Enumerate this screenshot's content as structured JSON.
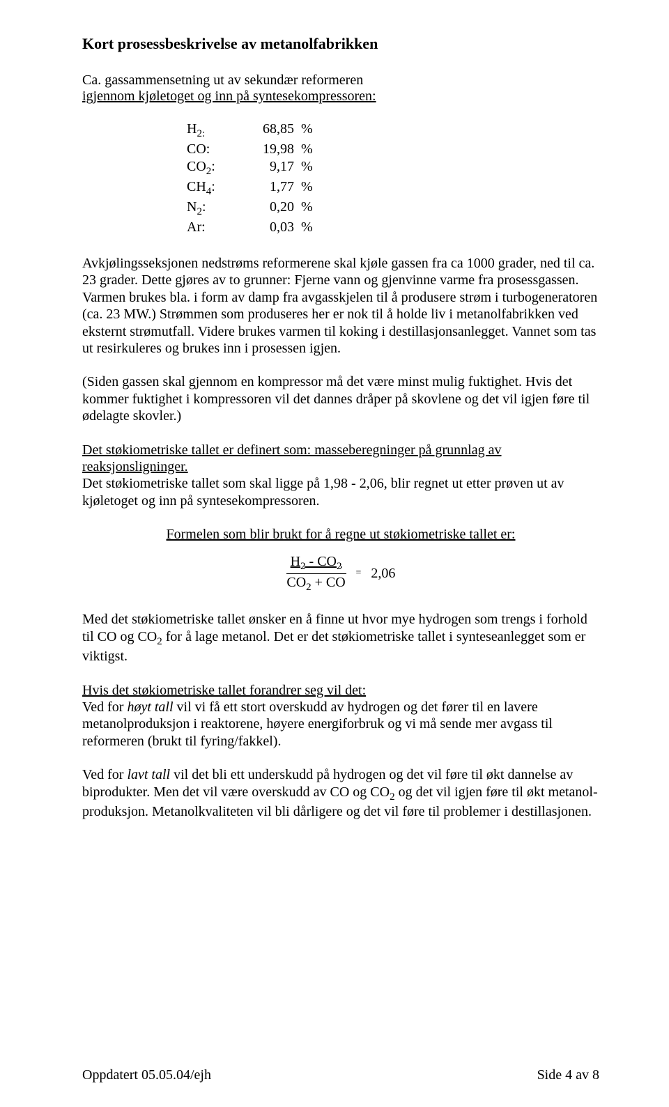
{
  "heading": "Kort prosessbeskrivelse av metanolfabrikken",
  "intro": {
    "line1": "Ca. gassammensetning ut av sekundær reformeren",
    "line2_underlined": "igjennom kjøletoget og inn på syntesekompressoren:"
  },
  "gas_table": {
    "rows": [
      {
        "label_pre": "H",
        "sub": "2:",
        "label_post": "",
        "value": "68,85",
        "pct": "%"
      },
      {
        "label_pre": "CO:",
        "sub": "",
        "label_post": "",
        "value": "19,98",
        "pct": "%"
      },
      {
        "label_pre": "CO",
        "sub": "2",
        "label_post": ":",
        "value": "9,17",
        "pct": "%"
      },
      {
        "label_pre": "CH",
        "sub": "4",
        "label_post": ":",
        "value": "1,77",
        "pct": "%"
      },
      {
        "label_pre": "N",
        "sub": "2",
        "label_post": ":",
        "value": "0,20",
        "pct": "%"
      },
      {
        "label_pre": "Ar:",
        "sub": "",
        "label_post": "",
        "value": "0,03",
        "pct": "%"
      }
    ]
  },
  "para1": "Avkjølingsseksjonen nedstrøms reformerene skal kjøle gassen fra ca 1000 grader, ned til ca. 23 grader. Dette gjøres av to grunner: Fjerne vann og gjenvinne varme fra prosessgassen. Varmen brukes bla. i form av damp fra avgasskjelen til å produsere strøm i turbogeneratoren (ca. 23 MW.) Strømmen som produseres her er nok til å holde liv i metanolfabrikken ved eksternt strømutfall. Videre brukes varmen til koking i destillasjonsanlegget. Vannet som tas ut resirkuleres og brukes inn i prosessen igjen.",
  "para2": "(Siden gassen skal gjennom en kompressor må det være minst mulig fuktighet. Hvis det kommer fuktighet i kompressoren vil det dannes dråper på skovlene og det vil igjen føre til ødelagte skovler.)",
  "stoich_def_line1": " Det støkiometriske tallet er definert som: masseberegninger på grunnlag av",
  "stoich_def_line2": "reaksjonsligninger.",
  "stoich_para": "Det støkiometriske tallet som skal ligge på 1,98 - 2,06, blir regnet ut etter prøven ut av kjøletoget og inn på syntesekompressoren.",
  "formula_caption": "Formelen som blir brukt for å regne ut støkiometriske tallet er:",
  "formula": {
    "num_a": "H",
    "num_a_sub": "2",
    "num_mid": "  - CO",
    "num_b_sub": "2",
    "den_a": "CO",
    "den_a_sub": "2",
    "den_rest": " + CO",
    "eq": "=",
    "value": "2,06"
  },
  "para3_html": "Med det støkiometriske tallet ønsker en å finne ut hvor mye hydrogen som trengs i forhold til CO og CO",
  "para3_tail": " for å lage metanol. Det er det støkiometriske tallet i synteseanlegget som er viktigst.",
  "change_heading": "Hvis det støkiometriske tallet forandrer seg vil det:",
  "hoyt_pre": "Ved for ",
  "hoyt_ital": "høyt tall",
  "hoyt_rest": " vil vi få ett stort overskudd av hydrogen og det fører til en lavere metanolproduksjon i reaktorene, høyere energiforbruk og vi må sende mer avgass til reformeren (brukt til fyring/fakkel).",
  "lavt_pre": "Ved for ",
  "lavt_ital": "lavt tall",
  "lavt_rest_a": " vil det bli ett underskudd på hydrogen og det vil føre til økt dannelse av biprodukter. Men det vil være overskudd av CO og CO",
  "lavt_rest_b": " og det vil igjen føre til økt metanol- produksjon. Metanolkvaliteten vil bli dårligere og det vil føre til problemer i destillasjonen.",
  "footer": {
    "left": "Oppdatert 05.05.04/ejh",
    "right": "Side 4 av 8"
  }
}
